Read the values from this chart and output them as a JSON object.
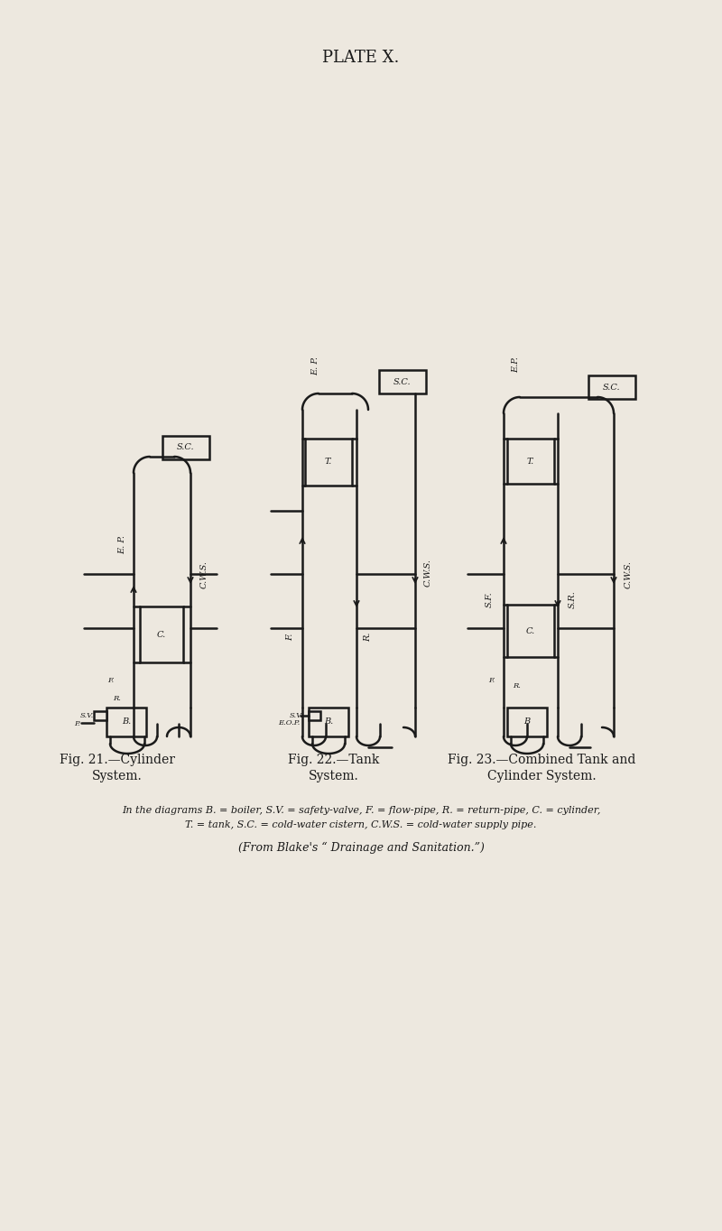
{
  "bg_color": "#EDE8DF",
  "line_color": "#1a1a1a",
  "title": "PLATE X.",
  "title_fontsize": 13,
  "caption1": "Fig. 21.—Cylinder",
  "caption1b": "System.",
  "caption2": "Fig. 22.—Tank",
  "caption2b": "System.",
  "caption3": "Fig. 23.—Combined Tank and",
  "caption3b": "Cylinder System.",
  "legend_line1": "In the diagrams B. = boiler, S.V. = safety-valve, F. = flow-pipe, R. = return-pipe, C. = cylinder,",
  "legend_line2": "T. = tank, S.C. = cold-water cistern, C.W.S. = cold-water supply pipe.",
  "legend_line3": "(From Blake's “ Drainage and Sanitation.”)",
  "lw": 1.8
}
